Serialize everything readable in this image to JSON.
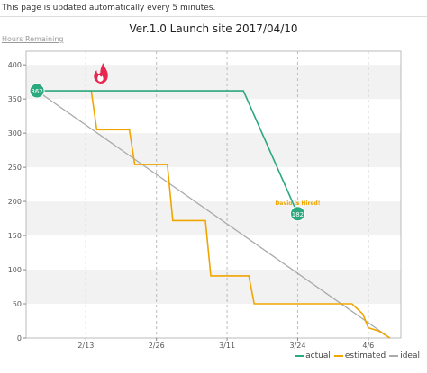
{
  "notice": "This page is updated automatically every 5 minutes.",
  "chart_data": {
    "type": "line",
    "title": "Ver.1.0 Launch site 2017/04/10",
    "ylabel": "Hours Remaining",
    "xlabel": "",
    "ylim": [
      0,
      420
    ],
    "xlim": [
      "2017-02-02",
      "2017-04-12"
    ],
    "y_ticks": [
      0,
      50,
      100,
      150,
      200,
      250,
      300,
      350,
      400
    ],
    "x_ticks": [
      "2/13",
      "2/26",
      "3/11",
      "3/24",
      "4/6"
    ],
    "x_tick_dates": [
      "2017-02-13",
      "2017-02-26",
      "2017-03-11",
      "2017-03-24",
      "2017-04-06"
    ],
    "grid": "horizontal-bands-and-dashed-verticals",
    "legend_position": "bottom-right",
    "series": [
      {
        "name": "actual",
        "color": "#2aa87e",
        "points": [
          [
            "2017-02-04",
            362
          ],
          [
            "2017-03-14",
            362
          ],
          [
            "2017-03-24",
            182
          ]
        ],
        "labels": [
          "362",
          "182"
        ],
        "annotation": "David is Hired!",
        "annotation_color": "#f0a500",
        "marker_icon": "fire-icon"
      },
      {
        "name": "estimated",
        "color": "#f0a500",
        "points": [
          [
            "2017-02-14",
            362
          ],
          [
            "2017-02-15",
            305
          ],
          [
            "2017-02-21",
            305
          ],
          [
            "2017-02-22",
            254
          ],
          [
            "2017-02-28",
            254
          ],
          [
            "2017-03-01",
            172
          ],
          [
            "2017-03-07",
            172
          ],
          [
            "2017-03-08",
            91
          ],
          [
            "2017-03-15",
            91
          ],
          [
            "2017-03-16",
            50
          ],
          [
            "2017-04-03",
            50
          ],
          [
            "2017-04-05",
            35
          ],
          [
            "2017-04-06",
            15
          ],
          [
            "2017-04-08",
            10
          ],
          [
            "2017-04-10",
            0
          ]
        ]
      },
      {
        "name": "ideal",
        "color": "#aaaaaa",
        "points": [
          [
            "2017-02-04",
            362
          ],
          [
            "2017-04-10",
            0
          ]
        ]
      }
    ]
  }
}
